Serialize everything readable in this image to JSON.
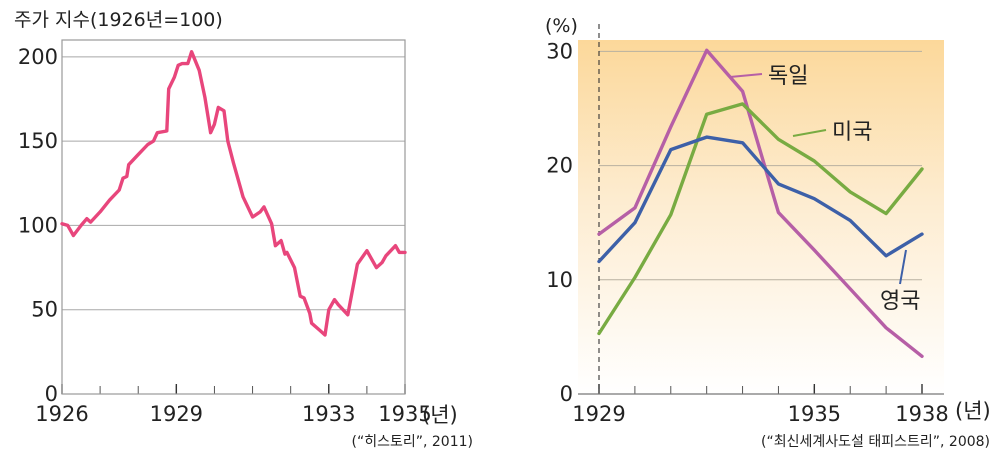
{
  "chart_data": [
    {
      "type": "line",
      "title": "주가 지수(1926년=100)",
      "x_unit": "(년)",
      "source": "(“히스토리”, 2011)",
      "xlim": [
        1926,
        1935
      ],
      "ylim": [
        0,
        210
      ],
      "yticks": [
        "0",
        "50",
        "100",
        "150",
        "200"
      ],
      "xticks": [
        "1926",
        "1929",
        "1933",
        "1935"
      ],
      "grid": true,
      "series": [
        {
          "color": "#e8467c",
          "x": [
            1926.0,
            1926.15,
            1926.3,
            1926.5,
            1926.65,
            1926.75,
            1927.0,
            1927.25,
            1927.5,
            1927.6,
            1927.7,
            1927.75,
            1928.0,
            1928.25,
            1928.4,
            1928.5,
            1928.75,
            1928.8,
            1928.95,
            1929.05,
            1929.15,
            1929.3,
            1929.4,
            1929.6,
            1929.75,
            1929.9,
            1930.0,
            1930.1,
            1930.25,
            1930.35,
            1930.5,
            1930.7,
            1930.75,
            1931.0,
            1931.2,
            1931.3,
            1931.5,
            1931.6,
            1931.75,
            1931.85,
            1931.9,
            1932.1,
            1932.25,
            1932.35,
            1932.5,
            1932.55,
            1932.75,
            1932.9,
            1933.0,
            1933.15,
            1933.25,
            1933.5,
            1933.75,
            1934.0,
            1934.25,
            1934.4,
            1934.5,
            1934.75,
            1934.85,
            1935.0
          ],
          "y": [
            101,
            100,
            94,
            100,
            104,
            102,
            108,
            115,
            121,
            128,
            129,
            136,
            142,
            148,
            150,
            155,
            156,
            181,
            188,
            195,
            196,
            196,
            203,
            192,
            176,
            155,
            160,
            170,
            168,
            150,
            137,
            121,
            117,
            105,
            108,
            111,
            101,
            88,
            91,
            83,
            84,
            75,
            58,
            57,
            48,
            42,
            38,
            35,
            50,
            56,
            53,
            47,
            77,
            85,
            75,
            78,
            82,
            88,
            84,
            84
          ]
        }
      ]
    },
    {
      "type": "line",
      "y_unit": "(%)",
      "x_unit": "(년)",
      "source": "(“최신세계사도설 태피스트리”, 2008)",
      "xlim": [
        1929,
        1938
      ],
      "ylim": [
        0,
        31
      ],
      "yticks": [
        "0",
        "10",
        "20",
        "30"
      ],
      "xticks": [
        "1929",
        "1935",
        "1938"
      ],
      "grid": true,
      "series": [
        {
          "name": "독일",
          "color": "#b65fa6",
          "x": [
            1929,
            1930,
            1931,
            1932,
            1933,
            1934,
            1935,
            1936,
            1937,
            1938
          ],
          "y": [
            14.0,
            16.3,
            23.4,
            30.1,
            26.5,
            15.9,
            12.6,
            9.2,
            5.8,
            3.3
          ]
        },
        {
          "name": "미국",
          "color": "#78ab42",
          "x": [
            1929,
            1930,
            1931,
            1932,
            1933,
            1934,
            1935,
            1936,
            1937,
            1938
          ],
          "y": [
            5.3,
            10.2,
            15.7,
            24.5,
            25.4,
            22.3,
            20.4,
            17.7,
            15.8,
            19.7
          ]
        },
        {
          "name": "영국",
          "color": "#3d60a8",
          "x": [
            1929,
            1930,
            1931,
            1932,
            1933,
            1934,
            1935,
            1936,
            1937,
            1938
          ],
          "y": [
            11.6,
            15.0,
            21.4,
            22.5,
            22.0,
            18.4,
            17.1,
            15.2,
            12.1,
            14.0
          ]
        }
      ]
    }
  ]
}
